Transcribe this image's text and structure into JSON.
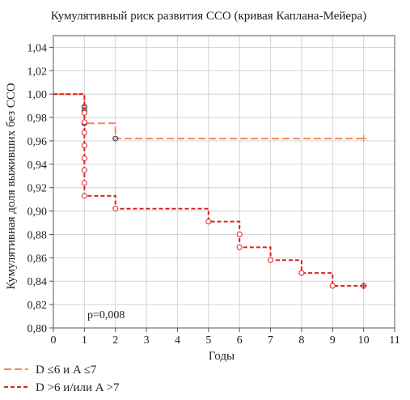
{
  "chart_data": {
    "type": "line",
    "title": "Кумулятивный риск развития ССО (кривая Каплана-Мейера)",
    "xlabel": "Годы",
    "ylabel": "Кумулятивная доля выживших без ССО",
    "xlim": [
      0,
      11
    ],
    "ylim": [
      0.8,
      1.05
    ],
    "x_ticks": [
      "0",
      "1",
      "2",
      "3",
      "4",
      "5",
      "6",
      "7",
      "8",
      "9",
      "10",
      "11"
    ],
    "y_ticks": [
      "0,80",
      "0,82",
      "0,84",
      "0,86",
      "0,88",
      "0,90",
      "0,92",
      "0,94",
      "0,96",
      "0,98",
      "1,00",
      "1,02",
      "1,04"
    ],
    "y_tick_values": [
      0.8,
      0.82,
      0.84,
      0.86,
      0.88,
      0.9,
      0.92,
      0.94,
      0.96,
      0.98,
      1.0,
      1.02,
      1.04
    ],
    "grid": true,
    "legend_position": "bottom-left",
    "annotation": "p=0,008",
    "series": [
      {
        "name": "D ≤6 и A ≤7",
        "color": "#f08a60",
        "line_style": "long-dash",
        "steps": [
          [
            0,
            1.0
          ],
          [
            1,
            0.975
          ],
          [
            2,
            0.962
          ],
          [
            10,
            0.962
          ]
        ],
        "censored": [
          [
            1,
            0.989
          ],
          [
            1,
            0.986
          ],
          [
            1,
            0.975
          ],
          [
            2,
            0.962
          ]
        ]
      },
      {
        "name": "D >6 и/или A >7",
        "color": "#e02020",
        "line_style": "short-dash",
        "steps": [
          [
            0,
            1.0
          ],
          [
            1,
            0.913
          ],
          [
            2,
            0.902
          ],
          [
            5,
            0.891
          ],
          [
            6,
            0.869
          ],
          [
            7,
            0.858
          ],
          [
            8,
            0.847
          ],
          [
            9,
            0.836
          ],
          [
            10,
            0.836
          ]
        ],
        "censored": [
          [
            1,
            0.984
          ],
          [
            1,
            0.976
          ],
          [
            1,
            0.967
          ],
          [
            1,
            0.956
          ],
          [
            1,
            0.945
          ],
          [
            1,
            0.935
          ],
          [
            1,
            0.924
          ],
          [
            1,
            0.913
          ],
          [
            2,
            0.902
          ],
          [
            5,
            0.891
          ],
          [
            6,
            0.88
          ],
          [
            6,
            0.869
          ],
          [
            7,
            0.858
          ],
          [
            8,
            0.847
          ],
          [
            9,
            0.836
          ],
          [
            10,
            0.836
          ]
        ]
      }
    ]
  }
}
